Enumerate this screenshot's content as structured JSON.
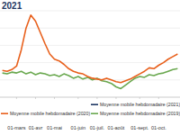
{
  "chart_data": {
    "type": "line",
    "title": "2021",
    "categories": [
      null,
      null,
      null,
      "01-mars",
      null,
      null,
      null,
      "01-avr",
      null,
      null,
      null,
      "01-mai",
      null,
      null,
      null,
      null,
      "01-juin",
      null,
      null,
      null,
      "01-juil.",
      null,
      null,
      null,
      "01-août",
      null,
      null,
      null,
      null,
      "01-sept.",
      null,
      null,
      null,
      "01-oct.",
      null,
      null,
      null,
      null
    ],
    "series": [
      {
        "name": "Moyenne mobile hebdomadaire (2021)",
        "color": "#1f3864",
        "values": [
          null,
          null,
          null,
          null,
          null,
          null,
          null,
          null,
          null,
          null,
          null,
          null,
          null,
          null,
          null,
          null,
          null,
          null,
          null,
          null,
          null,
          null,
          null,
          null,
          null,
          null,
          null,
          null,
          null,
          null,
          null,
          null,
          null,
          null,
          null,
          null,
          null,
          null
        ]
      },
      {
        "name": "Moyenne mobile hebdomadaire (2020)",
        "color": "#e8601c",
        "values": [
          31,
          30,
          32,
          36,
          55,
          80,
          95,
          88,
          75,
          62,
          50,
          44,
          42,
          38,
          33,
          30,
          28,
          27,
          24,
          22,
          21,
          20,
          22,
          20,
          18,
          17,
          19,
          21,
          24,
          27,
          30,
          34,
          33,
          37,
          40,
          44,
          47,
          50
        ]
      },
      {
        "name": "Moyenne mobile hebdomadaire (2019)",
        "color": "#6aa84f",
        "values": [
          28,
          27,
          29,
          28,
          30,
          27,
          29,
          26,
          28,
          27,
          25,
          26,
          24,
          27,
          25,
          22,
          24,
          21,
          23,
          20,
          22,
          19,
          18,
          16,
          12,
          10,
          14,
          18,
          22,
          24,
          23,
          26,
          25,
          27,
          28,
          30,
          32,
          33
        ]
      }
    ],
    "ylim": [
      0,
      100
    ],
    "yticks": [
      0,
      20,
      40,
      60,
      80,
      100
    ],
    "grid": true,
    "tick_labels": "x",
    "legend": "bottom"
  }
}
